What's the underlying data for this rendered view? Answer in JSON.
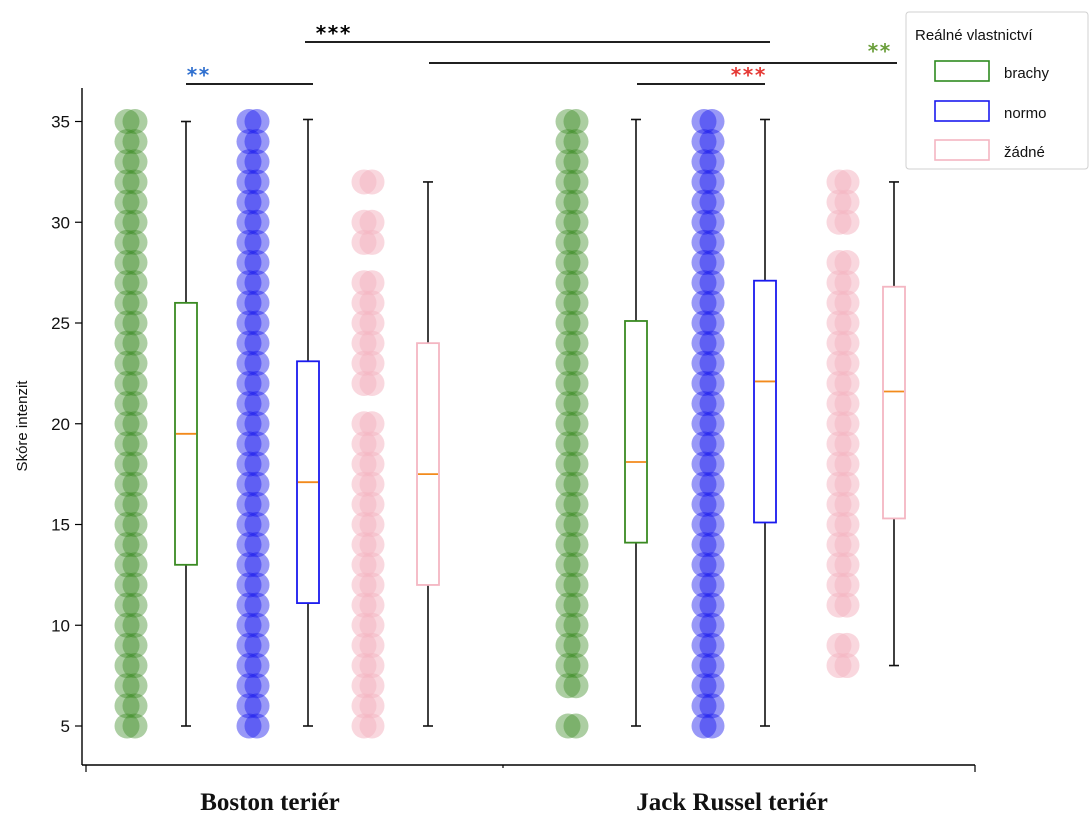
{
  "chart_data": {
    "type": "box",
    "ylabel": "Skóre intenzit",
    "ylim": [
      4,
      36
    ],
    "yticks": [
      5,
      10,
      15,
      20,
      25,
      30,
      35
    ],
    "categories": [
      "Boston teriér",
      "Jack Russel teriér"
    ],
    "legend": {
      "title": "Reálné vlastnictví",
      "placement": "top-right",
      "entries": [
        {
          "name": "brachy",
          "color": "#2e8b1f"
        },
        {
          "name": "normo",
          "color": "#1a1aee"
        },
        {
          "name": "žádné",
          "color": "#f4b6c2"
        }
      ]
    },
    "series": [
      {
        "name": "brachy",
        "color": "#3a8a22",
        "point_opacity": 0.42,
        "boxes": [
          {
            "category": "Boston teriér",
            "min": 5,
            "q1": 13,
            "median": 19.5,
            "q3": 26,
            "max": 35,
            "points": [
              5,
              6,
              7,
              8,
              9,
              10,
              11,
              12,
              13,
              14,
              15,
              16,
              17,
              18,
              19,
              20,
              21,
              22,
              23,
              24,
              25,
              26,
              27,
              28,
              29,
              30,
              31,
              32,
              33,
              34,
              35
            ]
          },
          {
            "category": "Jack Russel teriér",
            "min": 5,
            "q1": 14.1,
            "median": 18.1,
            "q3": 25.1,
            "max": 35.1,
            "points": [
              5,
              7,
              8,
              9,
              10,
              11,
              12,
              13,
              14,
              15,
              16,
              17,
              18,
              19,
              20,
              21,
              22,
              23,
              24,
              25,
              26,
              27,
              28,
              29,
              30,
              31,
              32,
              33,
              34,
              35
            ]
          }
        ]
      },
      {
        "name": "normo",
        "color": "#1a1aee",
        "point_opacity": 0.45,
        "boxes": [
          {
            "category": "Boston teriér",
            "min": 5,
            "q1": 11.1,
            "median": 17.1,
            "q3": 23.1,
            "max": 35.1,
            "points": [
              5,
              6,
              7,
              8,
              9,
              10,
              11,
              12,
              13,
              14,
              15,
              16,
              17,
              18,
              19,
              20,
              21,
              22,
              23,
              24,
              25,
              26,
              27,
              28,
              29,
              30,
              31,
              32,
              33,
              34,
              35
            ]
          },
          {
            "category": "Jack Russel teriér",
            "min": 5,
            "q1": 15.1,
            "median": 22.1,
            "q3": 27.1,
            "max": 35.1,
            "points": [
              5,
              6,
              7,
              8,
              9,
              10,
              11,
              12,
              13,
              14,
              15,
              16,
              17,
              18,
              19,
              20,
              21,
              22,
              23,
              24,
              25,
              26,
              27,
              28,
              29,
              30,
              31,
              32,
              33,
              34,
              35
            ]
          }
        ]
      },
      {
        "name": "žádné",
        "color": "#f4b6c2",
        "point_opacity": 0.55,
        "boxes": [
          {
            "category": "Boston teriér",
            "min": 5,
            "q1": 12,
            "median": 17.5,
            "q3": 24,
            "max": 32,
            "points": [
              5,
              6,
              7,
              8,
              9,
              10,
              11,
              12,
              13,
              14,
              15,
              16,
              17,
              18,
              19,
              20,
              22,
              23,
              24,
              25,
              26,
              27,
              29,
              30,
              32
            ]
          },
          {
            "category": "Jack Russel teriér",
            "min": 8,
            "q1": 15.3,
            "median": 21.6,
            "q3": 26.8,
            "max": 32,
            "points": [
              8,
              9,
              11,
              12,
              13,
              14,
              15,
              16,
              17,
              18,
              19,
              20,
              21,
              22,
              23,
              24,
              25,
              26,
              27,
              28,
              30,
              31,
              32
            ]
          }
        ]
      }
    ],
    "significance": [
      {
        "label": "***",
        "color": "#000000"
      },
      {
        "label": "**",
        "color": "#2f6fcf"
      },
      {
        "label": "**",
        "color": "#6a9e3a"
      },
      {
        "label": "***",
        "color": "#e53935"
      }
    ]
  }
}
